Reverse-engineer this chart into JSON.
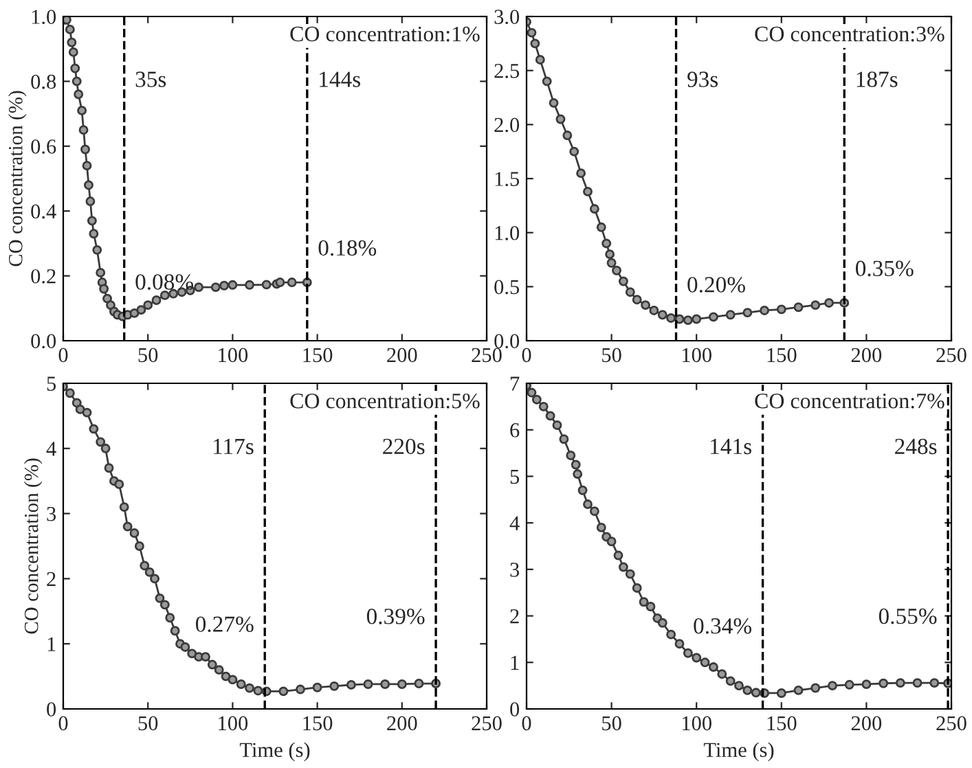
{
  "chart_data": [
    {
      "type": "line",
      "ylabel": "CO concentration (%)",
      "marker": "circle",
      "line_style": "solid",
      "grid": false,
      "legend": false,
      "tick_labels": "xy",
      "xlim": [
        0,
        250
      ],
      "xticks": [
        0,
        50,
        100,
        150,
        200,
        250
      ],
      "ylim": [
        0,
        1
      ],
      "yticks": [
        {
          "value": 0,
          "label": "0.0"
        },
        {
          "value": 0.2,
          "label": "0.2"
        },
        {
          "value": 0.4,
          "label": "0.4"
        },
        {
          "value": 0.6,
          "label": "0.6"
        },
        {
          "value": 0.8,
          "label": "0.8"
        },
        {
          "value": 1,
          "label": "1.0"
        }
      ],
      "series": [
        {
          "color": "#3a3a3a",
          "x": [
            1,
            2,
            4,
            5,
            6,
            7,
            8,
            9,
            11,
            12,
            13,
            14,
            15,
            16,
            17,
            18,
            20,
            22,
            23,
            24,
            26,
            28,
            30,
            32,
            35,
            38,
            42,
            46,
            50,
            55,
            60,
            65,
            70,
            75,
            80,
            90,
            95,
            100,
            110,
            120,
            126,
            128,
            135,
            144
          ],
          "values": [
            0.99,
            0.99,
            0.96,
            0.92,
            0.89,
            0.84,
            0.8,
            0.76,
            0.71,
            0.65,
            0.59,
            0.54,
            0.48,
            0.43,
            0.37,
            0.33,
            0.28,
            0.21,
            0.18,
            0.16,
            0.13,
            0.11,
            0.09,
            0.08,
            0.075,
            0.08,
            0.085,
            0.095,
            0.11,
            0.125,
            0.14,
            0.145,
            0.15,
            0.155,
            0.165,
            0.165,
            0.17,
            0.172,
            0.172,
            0.173,
            0.175,
            0.18,
            0.18,
            0.18
          ]
        }
      ],
      "ref_lines": [
        {
          "axis": "x",
          "value": 36,
          "label": "35s",
          "line_style": "dashed",
          "color": "#000000"
        },
        {
          "axis": "x",
          "value": 144,
          "label": "144s",
          "line_style": "dashed",
          "color": "#000000"
        }
      ],
      "annotations": [
        "CO concentration:1%",
        {
          "text": "0.08%",
          "x": 36,
          "y": 0.075
        },
        {
          "text": "0.18%",
          "x": 144,
          "y": 0.18
        }
      ]
    },
    {
      "type": "line",
      "marker": "circle",
      "line_style": "solid",
      "grid": false,
      "legend": false,
      "tick_labels": "xy",
      "xlim": [
        0,
        250
      ],
      "xticks": [
        0,
        50,
        100,
        150,
        200,
        250
      ],
      "ylim": [
        0,
        3
      ],
      "yticks": [
        {
          "value": 0,
          "label": "0.0"
        },
        {
          "value": 0.5,
          "label": "0.5"
        },
        {
          "value": 1,
          "label": "1.0"
        },
        {
          "value": 1.5,
          "label": "1.5"
        },
        {
          "value": 2,
          "label": "2.0"
        },
        {
          "value": 2.5,
          "label": "2.5"
        },
        {
          "value": 3,
          "label": "3.0"
        }
      ],
      "series": [
        {
          "color": "#3a3a3a",
          "x": [
            0,
            3,
            5,
            8,
            12,
            16,
            20,
            24,
            28,
            32,
            36,
            40,
            44,
            47,
            49,
            50,
            53,
            57,
            61,
            65,
            70,
            75,
            80,
            85,
            90,
            95,
            100,
            110,
            120,
            130,
            140,
            150,
            160,
            170,
            178,
            187
          ],
          "values": [
            2.95,
            2.85,
            2.75,
            2.6,
            2.4,
            2.2,
            2.05,
            1.9,
            1.75,
            1.55,
            1.38,
            1.22,
            1.05,
            0.9,
            0.8,
            0.72,
            0.65,
            0.55,
            0.45,
            0.38,
            0.33,
            0.28,
            0.24,
            0.21,
            0.2,
            0.19,
            0.2,
            0.22,
            0.24,
            0.26,
            0.28,
            0.29,
            0.31,
            0.33,
            0.35,
            0.35
          ]
        }
      ],
      "ref_lines": [
        {
          "axis": "x",
          "value": 88,
          "label": "93s",
          "line_style": "dashed",
          "color": "#000000"
        },
        {
          "axis": "x",
          "value": 187,
          "label": "187s",
          "line_style": "dashed",
          "color": "#000000"
        }
      ],
      "annotations": [
        "CO concentration:3%",
        {
          "text": "0.20%",
          "x": 88,
          "y": 0.2
        },
        {
          "text": "0.35%",
          "x": 187,
          "y": 0.35
        }
      ]
    },
    {
      "type": "line",
      "xlabel": "Time (s)",
      "ylabel": "CO concentration (%)",
      "marker": "circle",
      "line_style": "solid",
      "grid": false,
      "legend": false,
      "tick_labels": "xy",
      "xlim": [
        0,
        250
      ],
      "xticks": [
        0,
        50,
        100,
        150,
        200,
        250
      ],
      "ylim": [
        0,
        5
      ],
      "yticks": [
        0,
        1,
        2,
        3,
        4,
        5
      ],
      "series": [
        {
          "color": "#3a3a3a",
          "x": [
            0,
            4,
            8,
            10,
            14,
            18,
            22,
            25,
            27,
            30,
            33,
            36,
            38,
            42,
            45,
            48,
            51,
            54,
            57,
            60,
            63,
            66,
            69,
            72,
            76,
            80,
            84,
            88,
            92,
            96,
            100,
            105,
            110,
            115,
            120,
            130,
            140,
            150,
            160,
            170,
            180,
            190,
            200,
            210,
            220
          ],
          "values": [
            4.95,
            4.85,
            4.7,
            4.6,
            4.55,
            4.3,
            4.1,
            4.0,
            3.7,
            3.5,
            3.45,
            3.1,
            2.8,
            2.7,
            2.5,
            2.2,
            2.1,
            2.0,
            1.7,
            1.6,
            1.4,
            1.2,
            1.0,
            0.95,
            0.85,
            0.8,
            0.8,
            0.68,
            0.6,
            0.5,
            0.45,
            0.38,
            0.32,
            0.28,
            0.27,
            0.27,
            0.3,
            0.33,
            0.35,
            0.37,
            0.38,
            0.38,
            0.38,
            0.39,
            0.39
          ]
        }
      ],
      "ref_lines": [
        {
          "axis": "x",
          "value": 119,
          "label": "117s",
          "line_style": "dashed",
          "color": "#000000"
        },
        {
          "axis": "x",
          "value": 220,
          "label": "220s",
          "line_style": "dashed",
          "color": "#000000"
        }
      ],
      "annotations": [
        "CO concentration:5%",
        {
          "text": "0.27%",
          "x": 119,
          "y": 0.27
        },
        {
          "text": "0.39%",
          "x": 220,
          "y": 0.39
        }
      ]
    },
    {
      "type": "line",
      "xlabel": "Time (s)",
      "marker": "circle",
      "line_style": "solid",
      "grid": false,
      "legend": false,
      "tick_labels": "xy",
      "xlim": [
        0,
        250
      ],
      "xticks": [
        0,
        50,
        100,
        150,
        200,
        250
      ],
      "ylim": [
        0,
        7
      ],
      "yticks": [
        0,
        1,
        2,
        3,
        4,
        5,
        6,
        7
      ],
      "series": [
        {
          "color": "#3a3a3a",
          "x": [
            0,
            3,
            6,
            10,
            14,
            18,
            22,
            26,
            29,
            30,
            33,
            36,
            40,
            44,
            47,
            50,
            54,
            57,
            61,
            65,
            69,
            73,
            77,
            80,
            85,
            90,
            95,
            100,
            105,
            110,
            115,
            120,
            125,
            130,
            135,
            140,
            150,
            160,
            170,
            180,
            190,
            200,
            210,
            220,
            230,
            240,
            248
          ],
          "values": [
            6.95,
            6.8,
            6.65,
            6.5,
            6.3,
            6.1,
            5.8,
            5.45,
            5.25,
            5.05,
            4.7,
            4.4,
            4.25,
            3.9,
            3.7,
            3.6,
            3.3,
            3.05,
            2.9,
            2.6,
            2.3,
            2.2,
            1.95,
            1.85,
            1.6,
            1.4,
            1.2,
            1.1,
            1.0,
            0.9,
            0.75,
            0.6,
            0.5,
            0.4,
            0.35,
            0.34,
            0.34,
            0.4,
            0.45,
            0.5,
            0.52,
            0.53,
            0.55,
            0.56,
            0.56,
            0.56,
            0.55
          ]
        }
      ],
      "ref_lines": [
        {
          "axis": "x",
          "value": 139,
          "label": "141s",
          "line_style": "dashed",
          "color": "#000000"
        },
        {
          "axis": "x",
          "value": 248,
          "label": "248s",
          "line_style": "dashed",
          "color": "#000000"
        }
      ],
      "annotations": [
        "CO concentration:7%",
        {
          "text": "0.34%",
          "x": 139,
          "y": 0.34
        },
        {
          "text": "0.55%",
          "x": 248,
          "y": 0.55
        }
      ]
    }
  ]
}
